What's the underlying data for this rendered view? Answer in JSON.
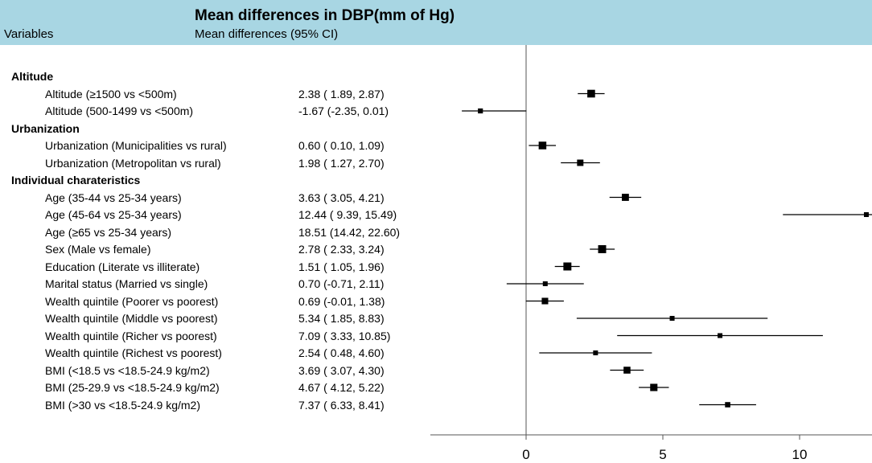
{
  "header": {
    "title": "Mean differences in DBP(mm of Hg)",
    "variables_label": "Variables",
    "subtitle": "Mean differences (95% CI)"
  },
  "chart_data": {
    "type": "forest",
    "title": "Mean differences in DBP(mm of Hg)",
    "xlim": [
      -3.5,
      23
    ],
    "xticks": [
      0,
      5,
      10,
      15,
      20
    ],
    "reference_line": 0,
    "groups": [
      {
        "label": "Altitude",
        "rows": [
          {
            "label": "Altitude (≥1500 vs <500m)",
            "ci_text": "2.38 ( 1.89,  2.87)",
            "estimate": 2.38,
            "lower": 1.89,
            "upper": 2.87
          },
          {
            "label": "Altitude (500-1499 vs <500m)",
            "ci_text": "-1.67 (-2.35,  0.01)",
            "estimate": -1.67,
            "lower": -2.35,
            "upper": 0.01
          }
        ]
      },
      {
        "label": "Urbanization",
        "rows": [
          {
            "label": "Urbanization (Municipalities vs rural)",
            "ci_text": "0.60 ( 0.10,  1.09)",
            "estimate": 0.6,
            "lower": 0.1,
            "upper": 1.09
          },
          {
            "label": "Urbanization (Metropolitan  vs rural)",
            "ci_text": "1.98 ( 1.27,  2.70)",
            "estimate": 1.98,
            "lower": 1.27,
            "upper": 2.7
          }
        ]
      },
      {
        "label": "Individual charateristics",
        "rows": [
          {
            "label": "Age (35-44 vs 25-34 years)",
            "ci_text": "3.63 ( 3.05,  4.21)",
            "estimate": 3.63,
            "lower": 3.05,
            "upper": 4.21
          },
          {
            "label": "Age (45-64 vs 25-34 years)",
            "ci_text": "12.44 ( 9.39, 15.49)",
            "estimate": 12.44,
            "lower": 9.39,
            "upper": 15.49
          },
          {
            "label": "Age (≥65 vs 25-34 years)",
            "ci_text": "18.51 (14.42, 22.60)",
            "estimate": 18.51,
            "lower": 14.42,
            "upper": 22.6
          },
          {
            "label": "Sex (Male vs female)",
            "ci_text": "2.78 ( 2.33,  3.24)",
            "estimate": 2.78,
            "lower": 2.33,
            "upper": 3.24
          },
          {
            "label": "Education (Literate vs illiterate)",
            "ci_text": "1.51 ( 1.05,  1.96)",
            "estimate": 1.51,
            "lower": 1.05,
            "upper": 1.96
          },
          {
            "label": "Marital status (Married vs single)",
            "ci_text": "0.70 (-0.71,  2.11)",
            "estimate": 0.7,
            "lower": -0.71,
            "upper": 2.11
          },
          {
            "label": "Wealth quintile (Poorer vs poorest)",
            "ci_text": "0.69 (-0.01,  1.38)",
            "estimate": 0.69,
            "lower": -0.01,
            "upper": 1.38
          },
          {
            "label": "Wealth quintile (Middle vs poorest)",
            "ci_text": "5.34 ( 1.85,  8.83)",
            "estimate": 5.34,
            "lower": 1.85,
            "upper": 8.83
          },
          {
            "label": "Wealth quintile (Richer vs poorest)",
            "ci_text": "7.09 ( 3.33, 10.85)",
            "estimate": 7.09,
            "lower": 3.33,
            "upper": 10.85
          },
          {
            "label": "Wealth quintile (Richest vs poorest)",
            "ci_text": "2.54 ( 0.48,  4.60)",
            "estimate": 2.54,
            "lower": 0.48,
            "upper": 4.6
          },
          {
            "label": "BMI (<18.5 vs <18.5-24.9 kg/m2)",
            "ci_text": "3.69 ( 3.07,  4.30)",
            "estimate": 3.69,
            "lower": 3.07,
            "upper": 4.3
          },
          {
            "label": "BMI (25-29.9 vs <18.5-24.9 kg/m2)",
            "ci_text": "4.67 ( 4.12,  5.22)",
            "estimate": 4.67,
            "lower": 4.12,
            "upper": 5.22
          },
          {
            "label": "BMI (>30 vs <18.5-24.9 kg/m2)",
            "ci_text": "7.37 ( 6.33,  8.41)",
            "estimate": 7.37,
            "lower": 6.33,
            "upper": 8.41
          }
        ]
      }
    ],
    "colors": {
      "header_bg": "#a8d6e3",
      "marks": "#000000",
      "axis": "#555555"
    }
  }
}
